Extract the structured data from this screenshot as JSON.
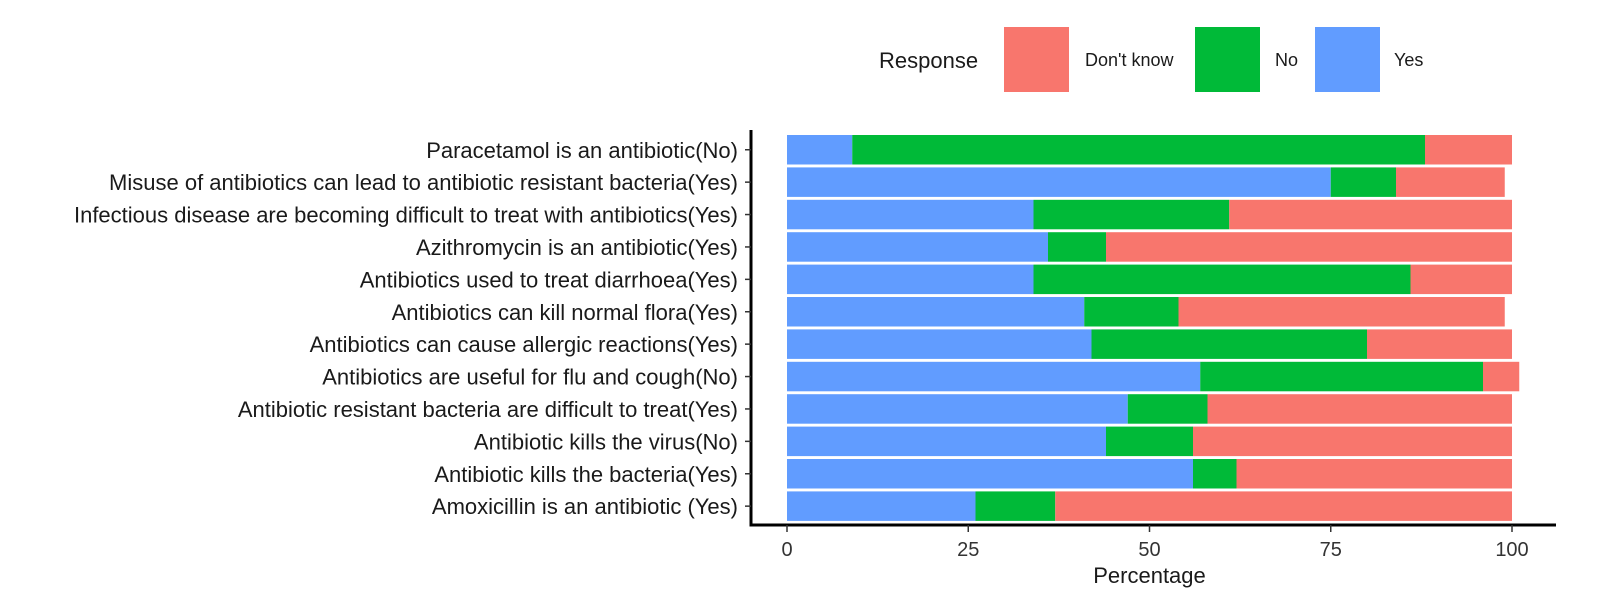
{
  "chart_data": {
    "type": "bar",
    "orientation": "horizontal",
    "stacked": true,
    "categories": [
      "Paracetamol is an antibiotic(No)",
      "Misuse of antibiotics can lead to antibiotic resistant bacteria(Yes)",
      "Infectious disease are becoming difficult to treat with antibiotics(Yes)",
      "Azithromycin is an antibiotic(Yes)",
      "Antibiotics used to treat diarrhoea(Yes)",
      "Antibiotics can kill normal flora(Yes)",
      "Antibiotics can cause allergic reactions(Yes)",
      "Antibiotics are useful for flu and cough(No)",
      "Antibiotic resistant bacteria are difficult to treat(Yes)",
      "Antibiotic kills the virus(No)",
      "Antibiotic kills the bacteria(Yes)",
      "Amoxicillin is an antibiotic (Yes)"
    ],
    "series": [
      {
        "name": "Yes",
        "color": "#619CFF",
        "values": [
          9,
          75,
          34,
          36,
          34,
          41,
          42,
          57,
          47,
          44,
          56,
          26
        ]
      },
      {
        "name": "No",
        "color": "#00BA38",
        "values": [
          79,
          9,
          27,
          8,
          52,
          13,
          38,
          39,
          11,
          12,
          6,
          11
        ]
      },
      {
        "name": "Don't know",
        "color": "#F8766D",
        "values": [
          12,
          15,
          39,
          56,
          14,
          45,
          20,
          5,
          42,
          44,
          38,
          63
        ]
      }
    ],
    "xlabel": "Percentage",
    "ylabel": "",
    "xlim": [
      0,
      100
    ],
    "xticks": [
      0,
      25,
      50,
      75,
      100
    ],
    "grid": false,
    "legend": {
      "title": "Response",
      "position": "top",
      "entries": [
        "Don't know",
        "No",
        "Yes"
      ]
    }
  }
}
